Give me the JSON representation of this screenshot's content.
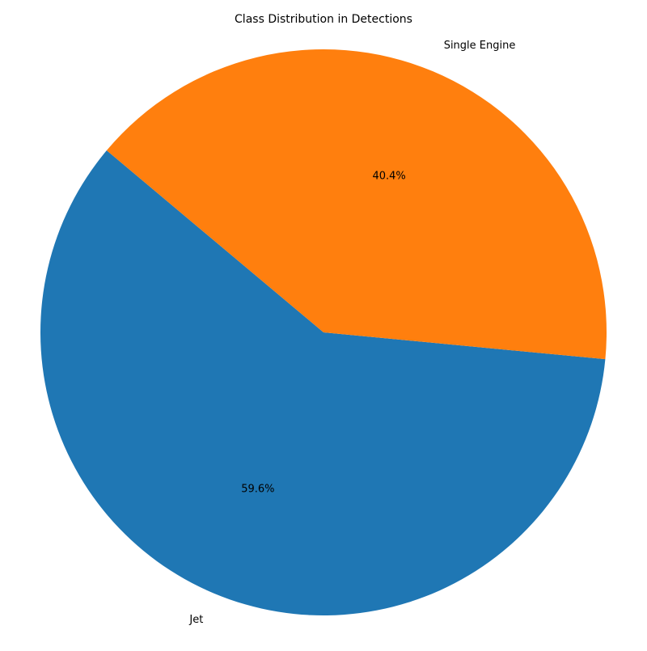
{
  "chart_data": {
    "type": "pie",
    "title": "Class Distribution in Detections",
    "slices": [
      {
        "label": "Jet",
        "value": 59.6,
        "pct_label": "59.6%",
        "color": "#1f77b4"
      },
      {
        "label": "Single Engine",
        "value": 40.4,
        "pct_label": "40.4%",
        "color": "#ff7f0e"
      }
    ],
    "start_angle_deg": 140,
    "direction": "counterclockwise",
    "legend": "none"
  }
}
